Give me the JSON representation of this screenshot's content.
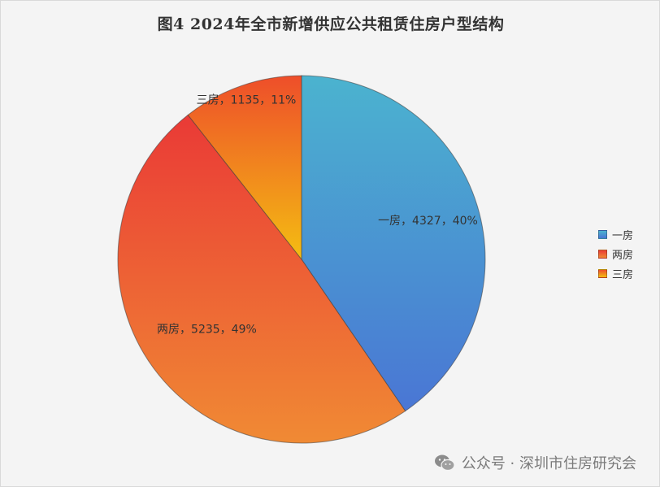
{
  "chart_data": {
    "type": "pie",
    "title": "图4  2024年全市新增供应公共租赁住房户型结构",
    "slices": [
      {
        "name": "一房",
        "value": 4327,
        "percent": "40%",
        "color_start": "#4bb3cf",
        "color_end": "#4a76d4"
      },
      {
        "name": "两房",
        "value": 5235,
        "percent": "49%",
        "color_start": "#ea3a36",
        "color_end": "#f08a34"
      },
      {
        "name": "三房",
        "value": 1135,
        "percent": "11%",
        "color_start": "#ee4e2a",
        "color_end": "#f4bd12"
      }
    ],
    "legend": {
      "placement": "right",
      "items": [
        "一房",
        "两房",
        "三房"
      ]
    }
  },
  "watermark": {
    "icon": "wechat-icon",
    "text": "公众号 · 深圳市住房研究会"
  }
}
